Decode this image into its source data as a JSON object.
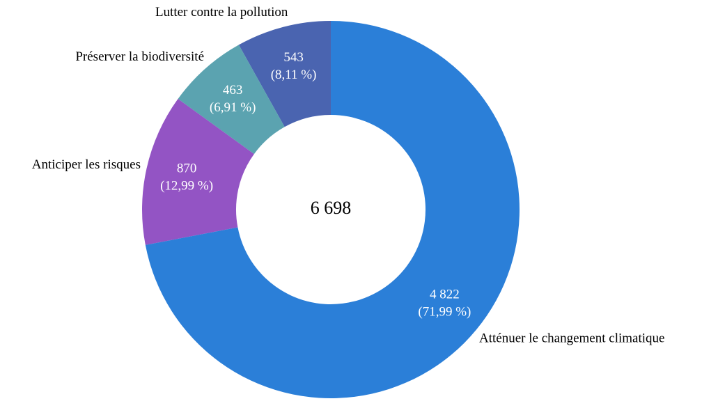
{
  "chart_data": {
    "type": "donut",
    "categories": [
      "Atténuer le changement climatique",
      "Anticiper les risques",
      "Préserver la biodiversité",
      "Lutter contre la pollution"
    ],
    "values": [
      4822,
      870,
      463,
      543
    ],
    "value_labels": [
      "4 822",
      "870",
      "463",
      "543"
    ],
    "percent_labels": [
      "(71,99 %)",
      "(12,99 %)",
      "(6,91 %)",
      "(8,11 %)"
    ],
    "colors": [
      "#2b7fd8",
      "#9354c4",
      "#5ba3b0",
      "#4a64b0"
    ],
    "center_label": "6 698"
  }
}
